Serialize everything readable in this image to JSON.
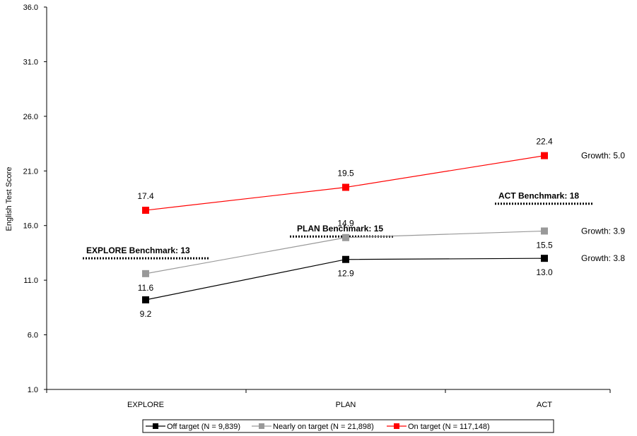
{
  "chart_data": {
    "type": "line",
    "title": "",
    "xlabel": "",
    "ylabel": "English Test Score",
    "categories": [
      "EXPLORE",
      "PLAN",
      "ACT"
    ],
    "ylim": [
      1.0,
      36.0
    ],
    "yticks": [
      "1.0",
      "6.0",
      "11.0",
      "16.0",
      "21.0",
      "26.0",
      "31.0",
      "36.0"
    ],
    "grid": false,
    "legend_position": "bottom",
    "series": [
      {
        "name": "Off target (N = 9,839)",
        "color": "#000000",
        "values": [
          9.2,
          12.9,
          13.0
        ],
        "labels": [
          "9.2",
          "12.9",
          "13.0"
        ],
        "growth": "Growth: 3.8"
      },
      {
        "name": "Nearly on target (N = 21,898)",
        "color": "#999999",
        "values": [
          11.6,
          14.9,
          15.5
        ],
        "labels": [
          "11.6",
          "14.9",
          "15.5"
        ],
        "growth": "Growth: 3.9"
      },
      {
        "name": "On target (N = 117,148)",
        "color": "#ff0000",
        "values": [
          17.4,
          19.5,
          22.4
        ],
        "labels": [
          "17.4",
          "19.5",
          "22.4"
        ],
        "growth": "Growth: 5.0"
      }
    ],
    "benchmarks": [
      {
        "label": "EXPLORE Benchmark: 13",
        "value": 13,
        "category": "EXPLORE"
      },
      {
        "label": "PLAN Benchmark: 15",
        "value": 15,
        "category": "PLAN"
      },
      {
        "label": "ACT Benchmark: 18",
        "value": 18,
        "category": "ACT"
      }
    ]
  }
}
